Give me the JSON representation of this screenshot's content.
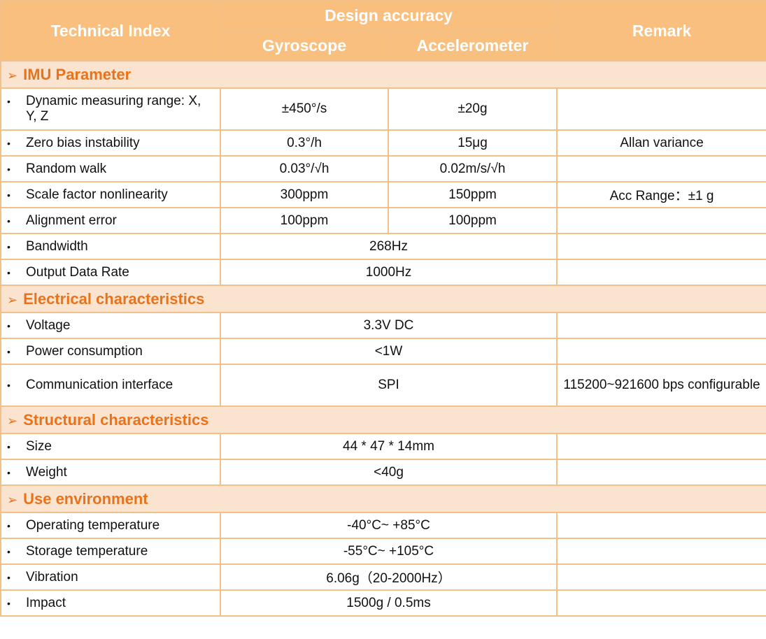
{
  "header": {
    "technical_index": "Technical Index",
    "design_accuracy": "Design accuracy",
    "gyroscope": "Gyroscope",
    "accelerometer": "Accelerometer",
    "remark": "Remark"
  },
  "sections": {
    "imu": {
      "title": "IMU Parameter",
      "rows": [
        {
          "name": "Dynamic measuring range: X, Y, Z",
          "gyro": "±450°/s",
          "acc": "±20g",
          "remark": ""
        },
        {
          "name": "Zero bias instability",
          "gyro": "0.3°/h",
          "acc": "15μg",
          "remark": "Allan variance"
        },
        {
          "name": "Random walk",
          "gyro": "0.03°/√h",
          "acc": "0.02m/s/√h",
          "remark": ""
        },
        {
          "name": "Scale factor nonlinearity",
          "gyro": "300ppm",
          "acc": "150ppm",
          "remark": "Acc Range：±1 g"
        },
        {
          "name": "Alignment error",
          "gyro": "100ppm",
          "acc": "100ppm",
          "remark": ""
        },
        {
          "name": "Bandwidth",
          "value": "268Hz",
          "remark": ""
        },
        {
          "name": "Output Data Rate",
          "value": "1000Hz",
          "remark": ""
        }
      ]
    },
    "electrical": {
      "title": "Electrical characteristics",
      "rows": [
        {
          "name": "Voltage",
          "value": "3.3V DC",
          "remark": ""
        },
        {
          "name": "Power consumption",
          "value": "<1W",
          "remark": ""
        },
        {
          "name": "Communication interface",
          "value": "SPI",
          "remark": "115200~921600 bps configurable"
        }
      ]
    },
    "structural": {
      "title": "Structural characteristics",
      "rows": [
        {
          "name": "Size",
          "value": "44 * 47 * 14mm",
          "remark": ""
        },
        {
          "name": "Weight",
          "value": "<40g",
          "remark": ""
        }
      ]
    },
    "environment": {
      "title": "Use environment",
      "rows": [
        {
          "name": "Operating temperature",
          "value": "-40°C~ +85°C",
          "remark": ""
        },
        {
          "name": "Storage temperature",
          "value": "-55°C~ +105°C",
          "remark": ""
        },
        {
          "name": "Vibration",
          "value": "6.06g（20-2000Hz）",
          "remark": ""
        },
        {
          "name": "Impact",
          "value": "1500g / 0.5ms",
          "remark": ""
        }
      ]
    }
  },
  "glyphs": {
    "bullet": "•",
    "section_arrow": "➢"
  },
  "colors": {
    "header_bg": "#f9bf7e",
    "section_bg": "#fbe4cf",
    "section_text": "#e8731c",
    "border": "#f4c089"
  }
}
